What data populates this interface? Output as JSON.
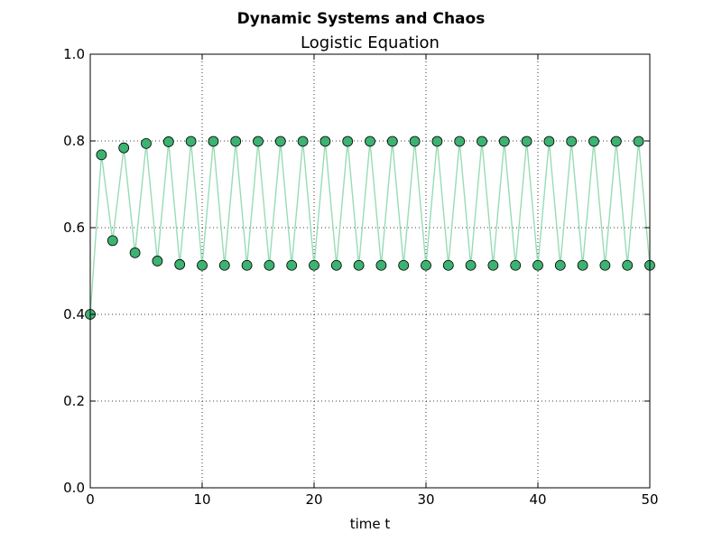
{
  "figure": {
    "suptitle": "Dynamic Systems and Chaos",
    "title": "Logistic Equation",
    "xlabel": "time t"
  },
  "colors": {
    "marker_fill": "#3cb371",
    "marker_edge": "#000000",
    "line": "#98dcb6"
  },
  "chart_data": {
    "type": "line",
    "title": "Logistic Equation",
    "suptitle": "Dynamic Systems and Chaos",
    "xlabel": "time t",
    "ylabel": "",
    "xlim": [
      0,
      50
    ],
    "ylim": [
      0.0,
      1.0
    ],
    "xticks": [
      0,
      10,
      20,
      30,
      40,
      50
    ],
    "xtick_labels": [
      "0",
      "10",
      "20",
      "30",
      "40",
      "50"
    ],
    "yticks": [
      0.0,
      0.2,
      0.4,
      0.6,
      0.8,
      1.0
    ],
    "ytick_labels": [
      "0.0",
      "0.2",
      "0.4",
      "0.6",
      "0.8",
      "1.0"
    ],
    "grid": true,
    "series": [
      {
        "x": [
          0,
          1,
          2,
          3,
          4,
          5,
          6,
          7,
          8,
          9,
          10,
          11,
          12,
          13,
          14,
          15,
          16,
          17,
          18,
          19,
          20,
          21,
          22,
          23,
          24,
          25,
          26,
          27,
          28,
          29,
          30,
          31,
          32,
          33,
          34,
          35,
          36,
          37,
          38,
          39,
          40,
          41,
          42,
          43,
          44,
          45,
          46,
          47,
          48,
          49,
          50
        ],
        "y": [
          0.4,
          0.768,
          0.57,
          0.784,
          0.542,
          0.794,
          0.523,
          0.798,
          0.515,
          0.799,
          0.513,
          0.799,
          0.513,
          0.799,
          0.513,
          0.799,
          0.513,
          0.799,
          0.513,
          0.799,
          0.513,
          0.799,
          0.513,
          0.799,
          0.513,
          0.799,
          0.513,
          0.799,
          0.513,
          0.799,
          0.513,
          0.799,
          0.513,
          0.799,
          0.513,
          0.799,
          0.513,
          0.799,
          0.513,
          0.799,
          0.513,
          0.799,
          0.513,
          0.799,
          0.513,
          0.799,
          0.513,
          0.799,
          0.513,
          0.799,
          0.513
        ]
      }
    ]
  }
}
